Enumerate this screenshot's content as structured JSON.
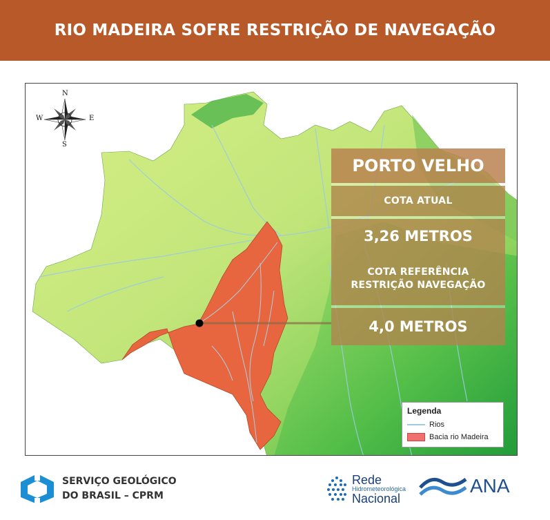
{
  "header": {
    "title": "RIO MADEIRA SOFRE RESTRIÇÃO DE NAVEGAÇÃO"
  },
  "colors": {
    "header_bg": "#b8592a",
    "basin": "#e8663f",
    "panel": "#b0844e"
  },
  "compass": {
    "north": "N",
    "south": "S",
    "east": "E",
    "west": "W"
  },
  "info": {
    "city": "PORTO VELHO",
    "current_label": "COTA ATUAL",
    "current_value": "3,26 METROS",
    "reference_label_1": "COTA REFERÊNCIA",
    "reference_label_2": "RESTRIÇÃO NAVEGAÇÃO",
    "reference_value": "4,0 METROS"
  },
  "legend": {
    "title": "Legenda",
    "items": [
      {
        "label": "Rios",
        "symbol": "line"
      },
      {
        "label": "Bacia rio Madeira",
        "symbol": "box"
      }
    ]
  },
  "footer": {
    "cprm_line1": "SERVIÇO GEOLÓGICO",
    "cprm_line2": "DO BRASIL – CPRM",
    "rede_line1": "Rede",
    "rede_line2": "Hidrometeorológica",
    "rede_line3": "Nacional",
    "ana": "ANA"
  }
}
